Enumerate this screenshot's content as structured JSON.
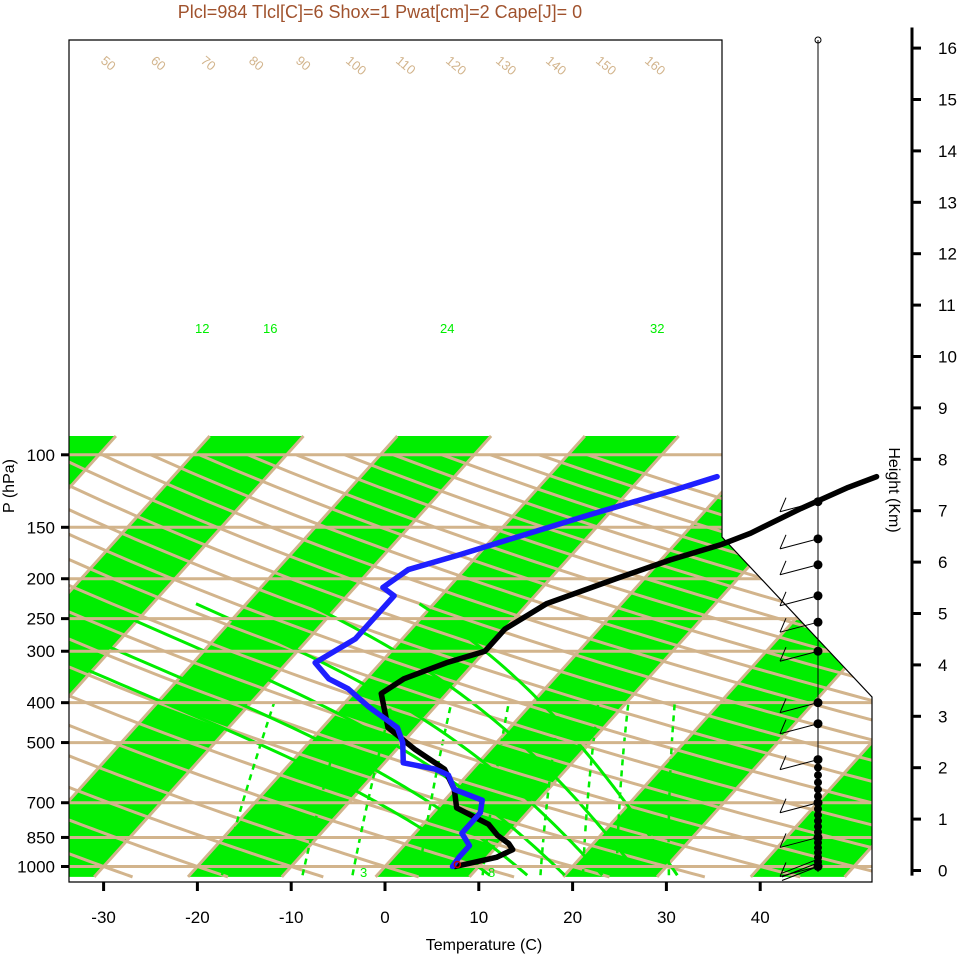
{
  "title": "Plcl=984 Tlcl[C]=6 Shox=1 Pwat[cm]=2 Cape[J]= 0",
  "chart_data": {
    "type": "line",
    "title": "Plcl=984 Tlcl[C]=6 Shox=1 Pwat[cm]=2 Cape[J]= 0",
    "xlabel": "Temperature (C)",
    "ylabel": "P (hPa)",
    "y2label": "Height (Km)",
    "xlim": [
      -33,
      52
    ],
    "ylim": [
      1050,
      100
    ],
    "x_ticks": [
      "-30",
      "-20",
      "-10",
      "0",
      "10",
      "20",
      "30",
      "40"
    ],
    "pressure_ticks": [
      "100",
      "150",
      "200",
      "250",
      "300",
      "400",
      "500",
      "700",
      "850",
      "1000"
    ],
    "height_ticks": [
      "0",
      "1",
      "2",
      "3",
      "4",
      "5",
      "6",
      "7",
      "8",
      "9",
      "10",
      "11",
      "12",
      "13",
      "14",
      "15",
      "16"
    ],
    "isotherm_labels": [
      "-30",
      "-20",
      "-10",
      "0",
      "10",
      "20",
      "30",
      "40",
      "50",
      "60",
      "70",
      "80",
      "90",
      "100",
      "110",
      "120",
      "130",
      "140",
      "150",
      "160"
    ],
    "mixing_ratio_labels": [
      "3",
      "8"
    ],
    "moist_adiabat_labels": [
      "12",
      "16",
      "24",
      "32"
    ],
    "series": [
      {
        "name": "Temperature",
        "color": "#000000",
        "points": [
          [
            7.5,
            1000
          ],
          [
            11,
            950
          ],
          [
            12,
            910
          ],
          [
            11,
            880
          ],
          [
            9,
            840
          ],
          [
            7,
            790
          ],
          [
            2,
            720
          ],
          [
            0,
            650
          ],
          [
            -3,
            580
          ],
          [
            -8,
            520
          ],
          [
            -13,
            460
          ],
          [
            -17,
            380
          ],
          [
            -16,
            350
          ],
          [
            -13,
            320
          ],
          [
            -10,
            300
          ],
          [
            -10,
            265
          ],
          [
            -8,
            230
          ],
          [
            -3,
            200
          ],
          [
            1,
            180
          ],
          [
            5,
            165
          ],
          [
            7,
            155
          ],
          [
            10,
            135
          ],
          [
            13,
            120
          ],
          [
            15,
            113
          ]
        ]
      },
      {
        "name": "Dew point",
        "color": "#1f1fff",
        "points": [
          [
            7.2,
            1000
          ],
          [
            7,
            950
          ],
          [
            7,
            890
          ],
          [
            5,
            830
          ],
          [
            5,
            790
          ],
          [
            5,
            740
          ],
          [
            4,
            690
          ],
          [
            0,
            650
          ],
          [
            -2,
            600
          ],
          [
            -4,
            580
          ],
          [
            -8,
            560
          ],
          [
            -10,
            500
          ],
          [
            -12,
            460
          ],
          [
            -17,
            410
          ],
          [
            -21,
            370
          ],
          [
            -24,
            350
          ],
          [
            -27,
            320
          ],
          [
            -25,
            280
          ],
          [
            -25,
            240
          ],
          [
            -25,
            220
          ],
          [
            -27,
            210
          ],
          [
            -26,
            190
          ],
          [
            -22,
            175
          ],
          [
            -18,
            160
          ],
          [
            -12,
            140
          ],
          [
            -5,
            121
          ],
          [
            -2,
            113
          ]
        ]
      }
    ],
    "wind_barb_levels_hPa": [
      130,
      160,
      185,
      220,
      255,
      300,
      400,
      450,
      550,
      700,
      850,
      1000
    ],
    "grid": true
  }
}
